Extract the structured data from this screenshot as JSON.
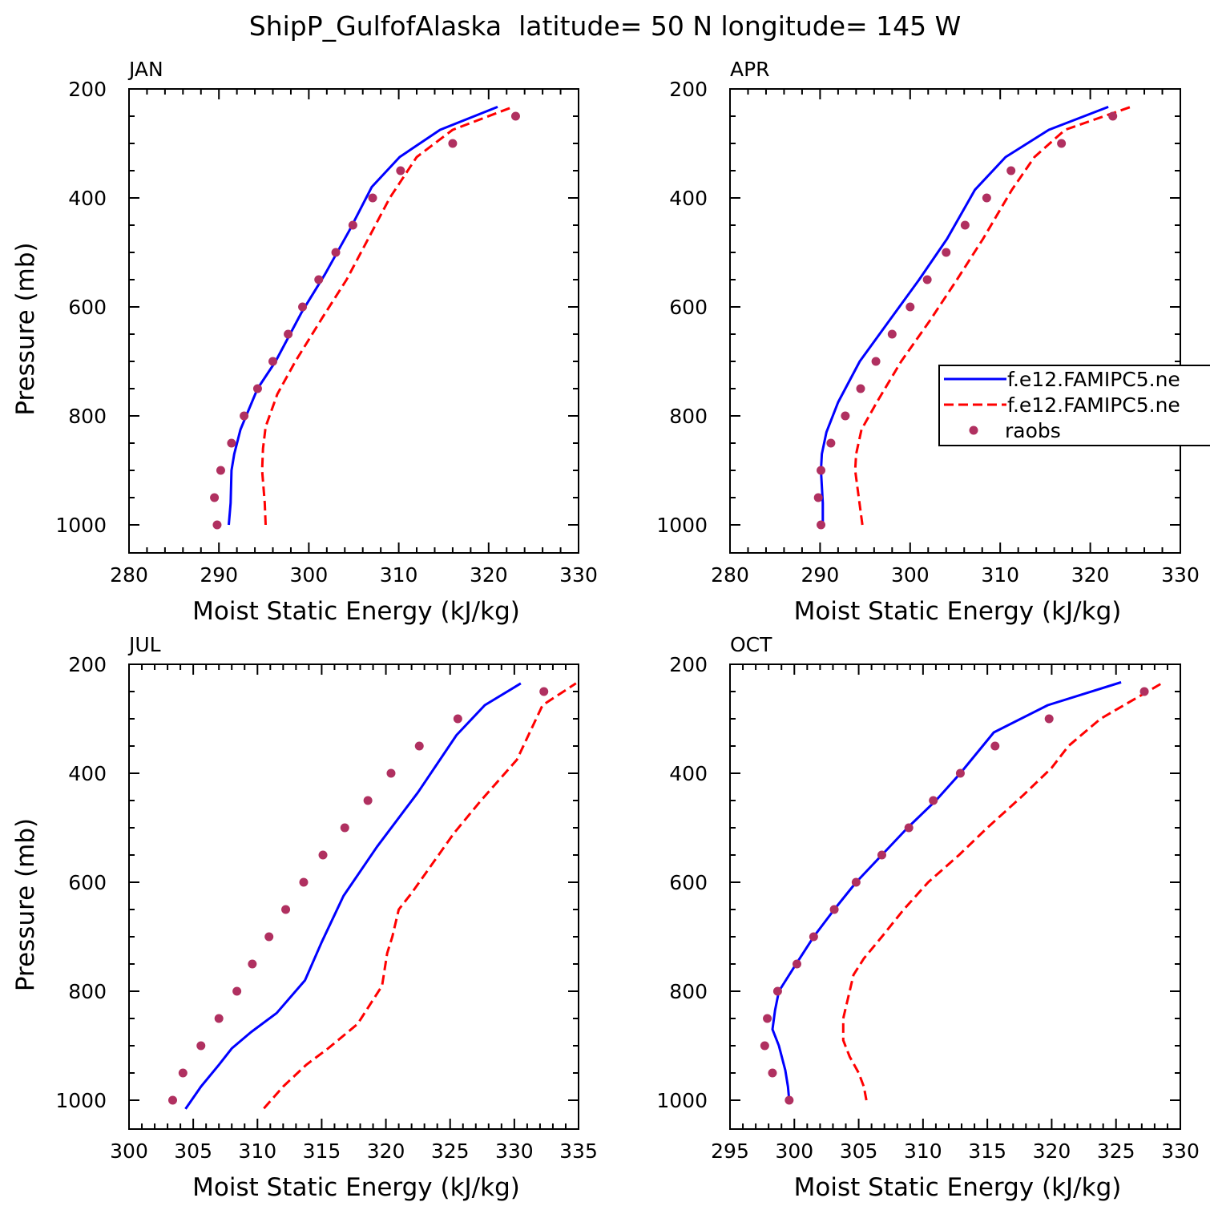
{
  "figure": {
    "title": "ShipP_GulfofAlaska  latitude= 50 N longitude= 145 W"
  },
  "legend": {
    "placement": "right edge of APR panel, clipped by page",
    "entries": [
      {
        "label": "f.e12.FAMIPC5.ne",
        "style": "solid",
        "color": "#0000ff"
      },
      {
        "label": "f.e12.FAMIPC5.ne",
        "style": "dashed",
        "color": "#ff0000"
      },
      {
        "label": "raobs",
        "style": "marker",
        "color": "#b03060"
      }
    ]
  },
  "chart_data": [
    {
      "type": "line",
      "title": "JAN",
      "xlabel": "Moist Static Energy (kJ/kg)",
      "ylabel": "Pressure (mb)",
      "xlim": [
        280,
        330
      ],
      "ylim": [
        200,
        1025
      ],
      "y_inverted": true,
      "xticks": [
        280,
        290,
        300,
        310,
        320,
        330
      ],
      "yticks": [
        200,
        400,
        600,
        800,
        1000
      ],
      "series": [
        {
          "style": "solid",
          "color": "#0000ff",
          "points": [
            [
              291.1,
              1000
            ],
            [
              291.3,
              960
            ],
            [
              291.4,
              900
            ],
            [
              291.7,
              870
            ],
            [
              292.4,
              825
            ],
            [
              294.3,
              750
            ],
            [
              296.3,
              700
            ],
            [
              299.2,
              610
            ],
            [
              301.8,
              540
            ],
            [
              304.5,
              460
            ],
            [
              307.0,
              380
            ],
            [
              310.1,
              325
            ],
            [
              314.6,
              275
            ],
            [
              321.0,
              233
            ]
          ]
        },
        {
          "style": "dashed",
          "color": "#ff0000",
          "points": [
            [
              295.2,
              1000
            ],
            [
              295.1,
              960
            ],
            [
              294.8,
              900
            ],
            [
              294.9,
              860
            ],
            [
              295.2,
              820
            ],
            [
              296.5,
              760
            ],
            [
              298.5,
              700
            ],
            [
              301.5,
              620
            ],
            [
              304.2,
              550
            ],
            [
              306.6,
              475
            ],
            [
              309.0,
              400
            ],
            [
              312.0,
              325
            ],
            [
              316.0,
              275
            ],
            [
              322.7,
              233
            ]
          ]
        },
        {
          "style": "marker",
          "color": "#b03060",
          "points": [
            [
              289.8,
              1000
            ],
            [
              289.5,
              950
            ],
            [
              290.2,
              900
            ],
            [
              291.4,
              850
            ],
            [
              292.8,
              800
            ],
            [
              294.3,
              750
            ],
            [
              296.0,
              700
            ],
            [
              297.7,
              650
            ],
            [
              299.3,
              600
            ],
            [
              301.1,
              550
            ],
            [
              303.0,
              500
            ],
            [
              304.9,
              450
            ],
            [
              307.1,
              400
            ],
            [
              310.2,
              350
            ],
            [
              316.0,
              300
            ],
            [
              323.0,
              250
            ]
          ]
        }
      ]
    },
    {
      "type": "line",
      "title": "APR",
      "xlabel": "Moist Static Energy (kJ/kg)",
      "ylabel": "",
      "xlim": [
        280,
        330
      ],
      "ylim": [
        200,
        1025
      ],
      "y_inverted": true,
      "xticks": [
        280,
        290,
        300,
        310,
        320,
        330
      ],
      "yticks": [
        200,
        400,
        600,
        800,
        1000
      ],
      "series": [
        {
          "style": "solid",
          "color": "#0000ff",
          "points": [
            [
              290.3,
              1000
            ],
            [
              290.3,
              960
            ],
            [
              290.1,
              900
            ],
            [
              290.2,
              870
            ],
            [
              290.7,
              830
            ],
            [
              292.0,
              775
            ],
            [
              294.4,
              700
            ],
            [
              297.7,
              625
            ],
            [
              301.0,
              550
            ],
            [
              304.1,
              475
            ],
            [
              307.2,
              385
            ],
            [
              310.6,
              325
            ],
            [
              315.4,
              275
            ],
            [
              322.0,
              233
            ]
          ]
        },
        {
          "style": "dashed",
          "color": "#ff0000",
          "points": [
            [
              294.7,
              1000
            ],
            [
              294.3,
              950
            ],
            [
              293.9,
              900
            ],
            [
              294.0,
              870
            ],
            [
              294.6,
              825
            ],
            [
              296.3,
              775
            ],
            [
              299.0,
              700
            ],
            [
              302.2,
              625
            ],
            [
              305.2,
              550
            ],
            [
              308.1,
              475
            ],
            [
              311.3,
              385
            ],
            [
              313.8,
              325
            ],
            [
              317.2,
              275
            ],
            [
              324.5,
              233
            ]
          ]
        },
        {
          "style": "marker",
          "color": "#b03060",
          "points": [
            [
              290.1,
              1000
            ],
            [
              289.8,
              950
            ],
            [
              290.1,
              900
            ],
            [
              291.2,
              850
            ],
            [
              292.8,
              800
            ],
            [
              294.5,
              750
            ],
            [
              296.2,
              700
            ],
            [
              298.0,
              650
            ],
            [
              300.0,
              600
            ],
            [
              301.9,
              550
            ],
            [
              304.0,
              500
            ],
            [
              306.1,
              450
            ],
            [
              308.5,
              400
            ],
            [
              311.2,
              350
            ],
            [
              316.8,
              300
            ],
            [
              322.5,
              250
            ]
          ]
        }
      ]
    },
    {
      "type": "line",
      "title": "JUL",
      "xlabel": "Moist Static Energy (kJ/kg)",
      "ylabel": "Pressure (mb)",
      "xlim": [
        300,
        335
      ],
      "ylim": [
        200,
        1025
      ],
      "y_inverted": true,
      "xticks": [
        300,
        305,
        310,
        315,
        320,
        325,
        330,
        335
      ],
      "yticks": [
        200,
        400,
        600,
        800,
        1000
      ],
      "series": [
        {
          "style": "solid",
          "color": "#0000ff",
          "points": [
            [
              304.4,
              1016
            ],
            [
              305.6,
              975
            ],
            [
              307.0,
              935
            ],
            [
              308.0,
              905
            ],
            [
              309.5,
              875
            ],
            [
              311.5,
              840
            ],
            [
              313.7,
              780
            ],
            [
              315.0,
              710
            ],
            [
              316.7,
              625
            ],
            [
              319.3,
              535
            ],
            [
              322.5,
              435
            ],
            [
              325.5,
              330
            ],
            [
              327.7,
              275
            ],
            [
              330.5,
              235
            ]
          ]
        },
        {
          "style": "dashed",
          "color": "#ff0000",
          "points": [
            [
              310.5,
              1015
            ],
            [
              312.0,
              975
            ],
            [
              313.8,
              935
            ],
            [
              315.5,
              905
            ],
            [
              317.8,
              860
            ],
            [
              319.7,
              790
            ],
            [
              320.1,
              730
            ],
            [
              320.5,
              700
            ],
            [
              321.0,
              650
            ],
            [
              322.0,
              620
            ],
            [
              323.8,
              560
            ],
            [
              325.3,
              510
            ],
            [
              327.4,
              450
            ],
            [
              330.2,
              375
            ],
            [
              332.2,
              275
            ],
            [
              334.8,
              235
            ]
          ]
        },
        {
          "style": "marker",
          "color": "#b03060",
          "points": [
            [
              303.4,
              1000
            ],
            [
              304.2,
              950
            ],
            [
              305.6,
              900
            ],
            [
              307.0,
              850
            ],
            [
              308.4,
              800
            ],
            [
              309.6,
              750
            ],
            [
              310.9,
              700
            ],
            [
              312.2,
              650
            ],
            [
              313.6,
              600
            ],
            [
              315.1,
              550
            ],
            [
              316.8,
              500
            ],
            [
              318.6,
              450
            ],
            [
              320.4,
              400
            ],
            [
              322.6,
              350
            ],
            [
              325.6,
              300
            ],
            [
              332.3,
              250
            ]
          ]
        }
      ]
    },
    {
      "type": "line",
      "title": "OCT",
      "xlabel": "Moist Static Energy (kJ/kg)",
      "ylabel": "",
      "xlim": [
        295,
        330
      ],
      "ylim": [
        200,
        1025
      ],
      "y_inverted": true,
      "xticks": [
        295,
        300,
        305,
        310,
        315,
        320,
        325,
        330
      ],
      "yticks": [
        200,
        400,
        600,
        800,
        1000
      ],
      "series": [
        {
          "style": "solid",
          "color": "#0000ff",
          "points": [
            [
              299.6,
              1000
            ],
            [
              299.5,
              975
            ],
            [
              299.3,
              945
            ],
            [
              298.8,
              900
            ],
            [
              298.3,
              870
            ],
            [
              298.5,
              835
            ],
            [
              298.8,
              800
            ],
            [
              300.0,
              755
            ],
            [
              301.5,
              700
            ],
            [
              303.1,
              650
            ],
            [
              304.8,
              600
            ],
            [
              306.8,
              550
            ],
            [
              308.8,
              500
            ],
            [
              311.0,
              450
            ],
            [
              312.9,
              400
            ],
            [
              315.5,
              325
            ],
            [
              319.7,
              275
            ],
            [
              325.4,
              233
            ]
          ]
        },
        {
          "style": "dashed",
          "color": "#ff0000",
          "points": [
            [
              305.6,
              1000
            ],
            [
              305.4,
              975
            ],
            [
              305.0,
              950
            ],
            [
              304.3,
              920
            ],
            [
              303.8,
              890
            ],
            [
              303.8,
              850
            ],
            [
              304.3,
              800
            ],
            [
              304.6,
              770
            ],
            [
              305.4,
              740
            ],
            [
              306.8,
              700
            ],
            [
              308.5,
              650
            ],
            [
              310.4,
              600
            ],
            [
              312.8,
              550
            ],
            [
              315.0,
              500
            ],
            [
              317.8,
              440
            ],
            [
              320.0,
              390
            ],
            [
              321.3,
              350
            ],
            [
              323.8,
              300
            ],
            [
              328.7,
              233
            ]
          ]
        },
        {
          "style": "marker",
          "color": "#b03060",
          "points": [
            [
              299.6,
              1000
            ],
            [
              298.3,
              950
            ],
            [
              297.7,
              900
            ],
            [
              297.9,
              850
            ],
            [
              298.7,
              800
            ],
            [
              300.2,
              750
            ],
            [
              301.5,
              700
            ],
            [
              303.1,
              650
            ],
            [
              304.8,
              600
            ],
            [
              306.8,
              550
            ],
            [
              308.9,
              500
            ],
            [
              310.8,
              450
            ],
            [
              312.9,
              400
            ],
            [
              315.6,
              350
            ],
            [
              319.8,
              300
            ],
            [
              327.2,
              250
            ]
          ]
        }
      ]
    }
  ]
}
